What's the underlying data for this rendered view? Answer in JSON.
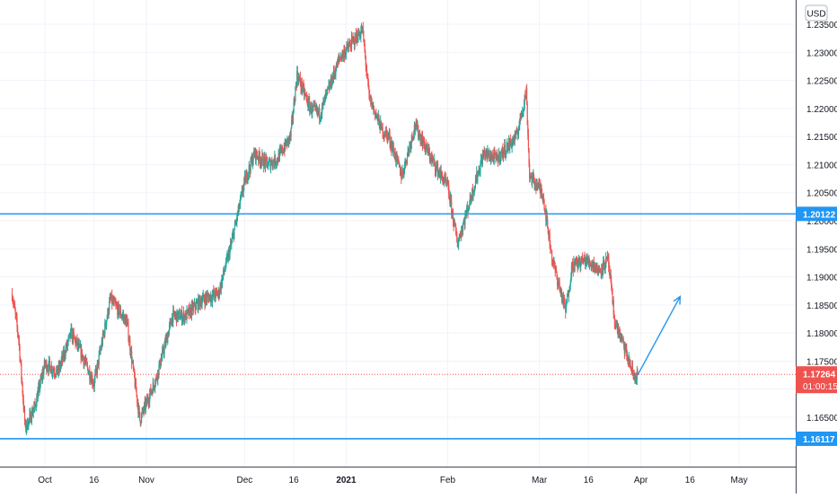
{
  "chart_data": {
    "type": "candlestick",
    "currency": "USD",
    "x_tick_labels": [
      "Oct",
      "16",
      "Nov",
      "Dec",
      "16",
      "2021",
      "Feb",
      "Mar",
      "16",
      "Apr",
      "16",
      "May"
    ],
    "y_tick_labels": [
      "1.16500",
      "1.17000",
      "1.17500",
      "1.18000",
      "1.18500",
      "1.19000",
      "1.19500",
      "1.20000",
      "1.20500",
      "1.21000",
      "1.21500",
      "1.22000",
      "1.22500",
      "1.23000",
      "1.23500"
    ],
    "ylim": [
      1.1575,
      1.2372
    ],
    "y_ticks": [
      1.165,
      1.17,
      1.175,
      1.18,
      1.185,
      1.19,
      1.195,
      1.2,
      1.205,
      1.21,
      1.215,
      1.22,
      1.225,
      1.23,
      1.235
    ],
    "horizontal_lines": [
      {
        "value": 1.20122,
        "label": "1.20122",
        "color": "#2196f3"
      },
      {
        "value": 1.16117,
        "label": "1.16117",
        "color": "#2196f3"
      }
    ],
    "last_price": {
      "value": 1.17264,
      "label": "1.17264",
      "countdown": "01:00:15",
      "color": "#ef5350"
    },
    "forecast_arrow": {
      "from": {
        "date": "2021-03-31",
        "value": 1.1725
      },
      "to": {
        "date": "2021-04-13",
        "value": 1.1865
      },
      "color": "#2196f3"
    },
    "up_color": "#26a69a",
    "down_color": "#ef5350",
    "grid": true,
    "anchors": [
      {
        "date": "2020-09-21",
        "close": 1.187
      },
      {
        "date": "2020-09-23",
        "close": 1.179
      },
      {
        "date": "2020-09-25",
        "close": 1.163
      },
      {
        "date": "2020-09-28",
        "close": 1.167
      },
      {
        "date": "2020-10-01",
        "close": 1.1745
      },
      {
        "date": "2020-10-05",
        "close": 1.173
      },
      {
        "date": "2020-10-09",
        "close": 1.18
      },
      {
        "date": "2020-10-12",
        "close": 1.1765
      },
      {
        "date": "2020-10-16",
        "close": 1.171
      },
      {
        "date": "2020-10-21",
        "close": 1.186
      },
      {
        "date": "2020-10-26",
        "close": 1.182
      },
      {
        "date": "2020-10-30",
        "close": 1.1645
      },
      {
        "date": "2020-11-04",
        "close": 1.172
      },
      {
        "date": "2020-11-09",
        "close": 1.183
      },
      {
        "date": "2020-11-13",
        "close": 1.183
      },
      {
        "date": "2020-11-18",
        "close": 1.186
      },
      {
        "date": "2020-11-23",
        "close": 1.187
      },
      {
        "date": "2020-11-27",
        "close": 1.196
      },
      {
        "date": "2020-12-01",
        "close": 1.207
      },
      {
        "date": "2020-12-04",
        "close": 1.212
      },
      {
        "date": "2020-12-08",
        "close": 1.21
      },
      {
        "date": "2020-12-11",
        "close": 1.211
      },
      {
        "date": "2020-12-15",
        "close": 1.215
      },
      {
        "date": "2020-12-17",
        "close": 1.226
      },
      {
        "date": "2020-12-21",
        "close": 1.22
      },
      {
        "date": "2020-12-24",
        "close": 1.219
      },
      {
        "date": "2020-12-30",
        "close": 1.229
      },
      {
        "date": "2021-01-06",
        "close": 1.234
      },
      {
        "date": "2021-01-08",
        "close": 1.222
      },
      {
        "date": "2021-01-12",
        "close": 1.216
      },
      {
        "date": "2021-01-14",
        "close": 1.215
      },
      {
        "date": "2021-01-18",
        "close": 1.208
      },
      {
        "date": "2021-01-22",
        "close": 1.217
      },
      {
        "date": "2021-01-27",
        "close": 1.211
      },
      {
        "date": "2021-02-01",
        "close": 1.206
      },
      {
        "date": "2021-02-04",
        "close": 1.196
      },
      {
        "date": "2021-02-08",
        "close": 1.204
      },
      {
        "date": "2021-02-12",
        "close": 1.212
      },
      {
        "date": "2021-02-16",
        "close": 1.211
      },
      {
        "date": "2021-02-19",
        "close": 1.213
      },
      {
        "date": "2021-02-22",
        "close": 1.215
      },
      {
        "date": "2021-02-25",
        "close": 1.223
      },
      {
        "date": "2021-02-26",
        "close": 1.208
      },
      {
        "date": "2021-03-02",
        "close": 1.205
      },
      {
        "date": "2021-03-05",
        "close": 1.193
      },
      {
        "date": "2021-03-09",
        "close": 1.184
      },
      {
        "date": "2021-03-11",
        "close": 1.192
      },
      {
        "date": "2021-03-15",
        "close": 1.193
      },
      {
        "date": "2021-03-18",
        "close": 1.192
      },
      {
        "date": "2021-03-19",
        "close": 1.191
      },
      {
        "date": "2021-03-22",
        "close": 1.193
      },
      {
        "date": "2021-03-24",
        "close": 1.182
      },
      {
        "date": "2021-03-26",
        "close": 1.179
      },
      {
        "date": "2021-03-30",
        "close": 1.172
      },
      {
        "date": "2021-03-31",
        "close": 1.1726
      }
    ]
  }
}
